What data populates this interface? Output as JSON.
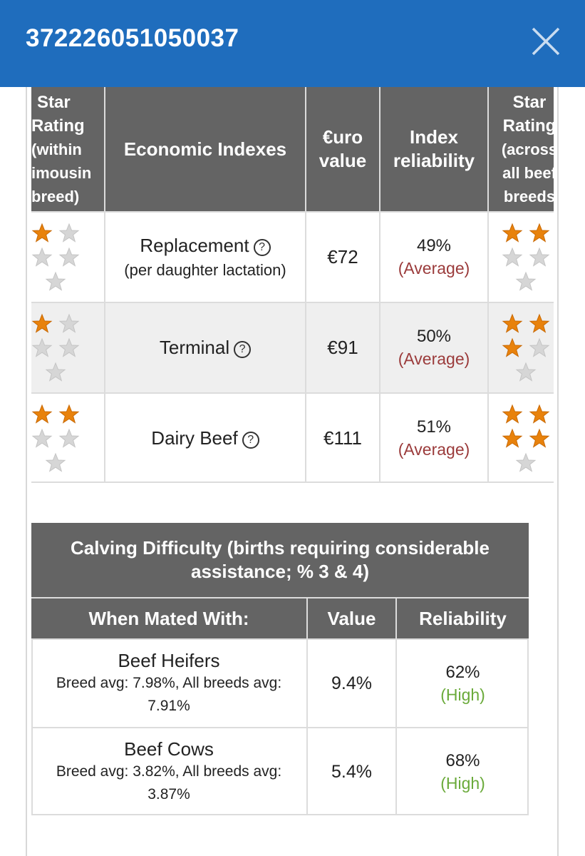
{
  "header": {
    "title": "372226051050037"
  },
  "economic_table": {
    "headers": {
      "star_within": [
        "Star",
        "Rating",
        "(within",
        "imousin",
        "breed)"
      ],
      "indexes": "Economic Indexes",
      "value": [
        "€uro",
        "value"
      ],
      "reliability": [
        "Index",
        "reliability"
      ],
      "star_across": [
        "Star",
        "Rating",
        "(across",
        "all beef",
        "breeds"
      ]
    },
    "rows": [
      {
        "name": "Replacement",
        "sub": "(per daughter lactation)",
        "value": "€72",
        "reliability": "49%",
        "reliability_label": "(Average)",
        "stars_within": 1,
        "stars_across": 2
      },
      {
        "name": "Terminal",
        "sub": "",
        "value": "€91",
        "reliability": "50%",
        "reliability_label": "(Average)",
        "stars_within": 1,
        "stars_across": 3
      },
      {
        "name": "Dairy Beef",
        "sub": "",
        "value": "€111",
        "reliability": "51%",
        "reliability_label": "(Average)",
        "stars_within": 2,
        "stars_across": 4
      }
    ],
    "help_icon": "question-circle-icon"
  },
  "calving_table": {
    "title": "Calving Difficulty (births requiring considerable assistance; % 3 & 4)",
    "headers": {
      "mated_with": "When Mated With:",
      "value": "Value",
      "reliability": "Reliability"
    },
    "rows": [
      {
        "name": "Beef Heifers",
        "avg_line1": "Breed avg: 7.98%, All breeds avg:",
        "avg_line2": "7.91%",
        "value": "9.4%",
        "reliability": "62%",
        "reliability_label": "(High)"
      },
      {
        "name": "Beef Cows",
        "avg_line1": "Breed avg: 3.82%, All breeds avg:",
        "avg_line2": "3.87%",
        "value": "5.4%",
        "reliability": "68%",
        "reliability_label": "(High)"
      }
    ]
  },
  "colors": {
    "header_bg": "#1f6dbd",
    "table_header": "#646464",
    "star_on": "#e8820c",
    "star_off": "#d6d6d6",
    "average": "#9b3b3b",
    "high": "#6aaa3a"
  }
}
